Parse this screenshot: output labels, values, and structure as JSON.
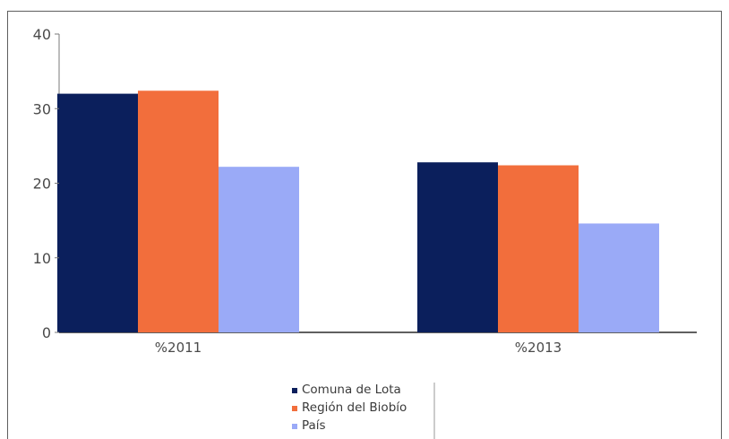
{
  "chart_data": {
    "type": "bar",
    "categories": [
      "%2011",
      "%2013"
    ],
    "series": [
      {
        "name": "Comuna de Lota",
        "values": [
          32,
          22.8
        ]
      },
      {
        "name": "Región del Biobío",
        "values": [
          32.4,
          22.4
        ]
      },
      {
        "name": "País",
        "values": [
          22.2,
          14.6
        ]
      }
    ],
    "title": "",
    "xlabel": "",
    "ylabel": "",
    "ylim": [
      0,
      40
    ],
    "yticks": [
      "0",
      "10",
      "20",
      "30",
      "40"
    ],
    "grid": false,
    "legend_position": "bottom-center",
    "colors": [
      "#0b1f5c",
      "#f26e3c",
      "#9aaaf7"
    ]
  }
}
